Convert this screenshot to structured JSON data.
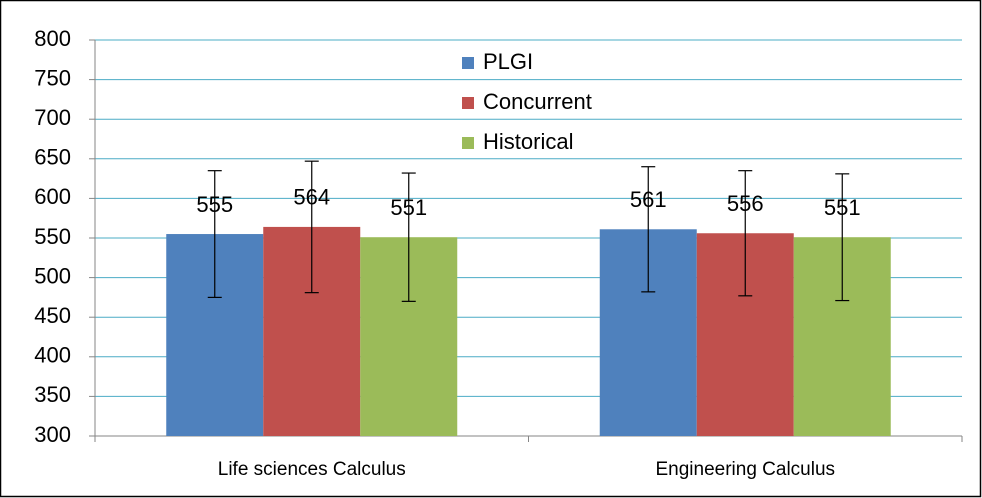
{
  "chart_data": {
    "type": "bar",
    "categories": [
      "Life sciences Calculus",
      "Engineering Calculus"
    ],
    "series": [
      {
        "name": "PLGI",
        "color": "#4f81bd",
        "values": [
          555,
          561
        ],
        "errors": [
          80,
          79
        ]
      },
      {
        "name": "Concurrent",
        "color": "#c0504d",
        "values": [
          564,
          556
        ],
        "errors": [
          83,
          79
        ]
      },
      {
        "name": "Historical",
        "color": "#9bbb59",
        "values": [
          551,
          551
        ],
        "errors": [
          81,
          80
        ]
      }
    ],
    "ylim": [
      300,
      800
    ],
    "yticks": [
      300,
      350,
      400,
      450,
      500,
      550,
      600,
      650,
      700,
      750,
      800
    ],
    "grid": true,
    "legend": "top"
  }
}
